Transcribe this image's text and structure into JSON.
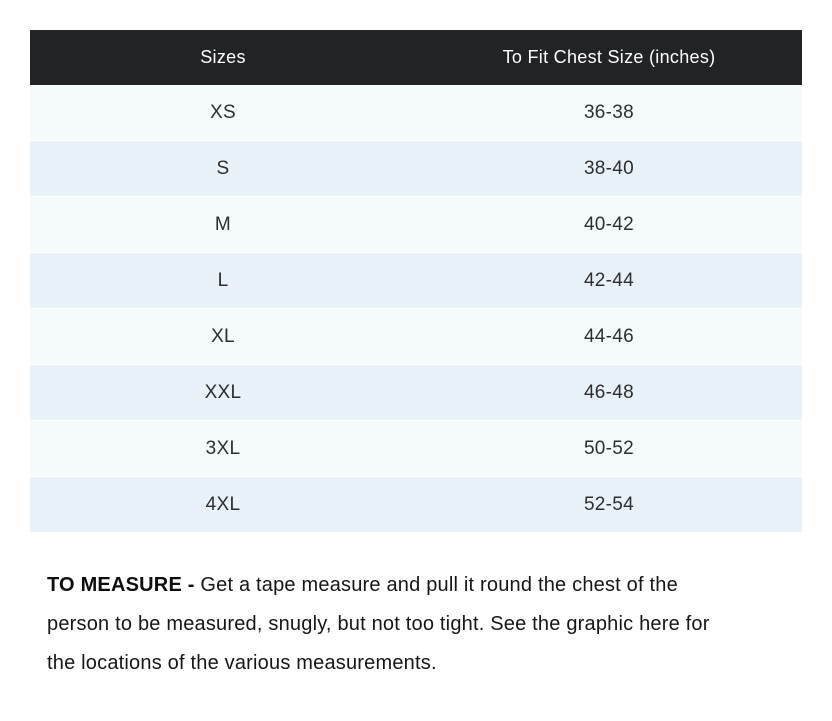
{
  "table": {
    "headers": [
      "Sizes",
      "To Fit Chest Size (inches)"
    ],
    "rows": [
      {
        "size": "XS",
        "chest": "36-38"
      },
      {
        "size": "S",
        "chest": "38-40"
      },
      {
        "size": "M",
        "chest": "40-42"
      },
      {
        "size": "L",
        "chest": "42-44"
      },
      {
        "size": "XL",
        "chest": "44-46"
      },
      {
        "size": "XXL",
        "chest": "46-48"
      },
      {
        "size": "3XL",
        "chest": "50-52"
      },
      {
        "size": "4XL",
        "chest": "52-54"
      }
    ]
  },
  "note": {
    "bold_label": "TO MEASURE - ",
    "text": "Get a tape measure and pull it round the chest of the person to be measured, snugly, but not too tight. See the graphic here for the locations of the various measurements."
  },
  "colors": {
    "header_bg": "#222326",
    "header_text": "#ffffff",
    "row_odd_bg": "#f5fafd",
    "row_even_bg": "#eaf2f9",
    "body_text": "#2e2e2e",
    "note_text": "#161616"
  }
}
